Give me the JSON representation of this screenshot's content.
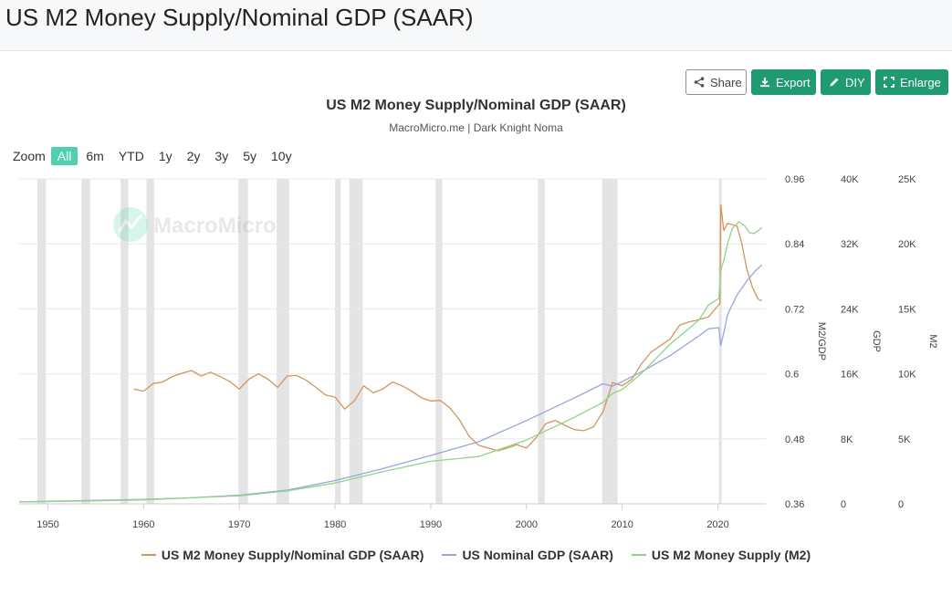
{
  "page": {
    "title": "US M2 Money Supply/Nominal GDP (SAAR)"
  },
  "toolbar": {
    "share_label": "Share",
    "export_label": "Export",
    "diy_label": "DIY",
    "enlarge_label": "Enlarge"
  },
  "chart_header": {
    "title": "US M2 Money Supply/Nominal GDP (SAAR)",
    "subtitle": "MacroMicro.me | Dark Knight Noma",
    "watermark": "MacroMicro"
  },
  "zoom": {
    "label": "Zoom",
    "options": [
      "All",
      "6m",
      "YTD",
      "1y",
      "2y",
      "3y",
      "5y",
      "10y"
    ],
    "active": "All"
  },
  "colors": {
    "ratio": "#d4955a",
    "gdp": "#97a6dc",
    "m2": "#8fd48a",
    "recession": "#e4e4e4",
    "grid": "#e8e8e8"
  },
  "chart_data": {
    "type": "line",
    "title": "US M2 Money Supply/Nominal GDP (SAAR)",
    "subtitle": "MacroMicro.me | Dark Knight Noma",
    "xlabel": "",
    "x_ticks": [
      "1950",
      "1960",
      "1970",
      "1980",
      "1990",
      "2000",
      "2010",
      "2020"
    ],
    "x_range": [
      1947,
      2025
    ],
    "axes": [
      {
        "id": "ratio",
        "title": "M2/GDP",
        "range": [
          0.36,
          0.96
        ],
        "ticks": [
          "0.36",
          "0.48",
          "0.6",
          "0.72",
          "0.84",
          "0.96"
        ]
      },
      {
        "id": "gdp",
        "title": "GDP",
        "range": [
          0,
          40000
        ],
        "ticks": [
          "0",
          "8K",
          "16K",
          "24K",
          "32K",
          "40K"
        ]
      },
      {
        "id": "m2",
        "title": "M2",
        "range": [
          0,
          25000
        ],
        "ticks": [
          "0",
          "5K",
          "10K",
          "15K",
          "20K",
          "25K"
        ]
      }
    ],
    "recessions": [
      [
        1948.9,
        1949.8
      ],
      [
        1953.5,
        1954.4
      ],
      [
        1957.6,
        1958.4
      ],
      [
        1960.3,
        1961.1
      ],
      [
        1969.9,
        1970.9
      ],
      [
        1973.9,
        1975.2
      ],
      [
        1980.0,
        1980.6
      ],
      [
        1981.5,
        1982.9
      ],
      [
        1990.5,
        1991.2
      ],
      [
        2001.2,
        2001.9
      ],
      [
        2007.9,
        2009.5
      ],
      [
        2020.1,
        2020.4
      ]
    ],
    "series": [
      {
        "name": "US M2 Money Supply/Nominal GDP (SAAR)",
        "axis": "ratio",
        "color": "#d4955a",
        "points": [
          [
            1959,
            0.572
          ],
          [
            1960,
            0.568
          ],
          [
            1961,
            0.582
          ],
          [
            1962,
            0.585
          ],
          [
            1963,
            0.595
          ],
          [
            1964,
            0.601
          ],
          [
            1965,
            0.606
          ],
          [
            1966,
            0.596
          ],
          [
            1967,
            0.603
          ],
          [
            1968,
            0.595
          ],
          [
            1969,
            0.586
          ],
          [
            1970,
            0.572
          ],
          [
            1971,
            0.59
          ],
          [
            1972,
            0.6
          ],
          [
            1973,
            0.59
          ],
          [
            1974,
            0.575
          ],
          [
            1975,
            0.596
          ],
          [
            1976,
            0.597
          ],
          [
            1977,
            0.588
          ],
          [
            1978,
            0.575
          ],
          [
            1979,
            0.561
          ],
          [
            1980,
            0.557
          ],
          [
            1981,
            0.535
          ],
          [
            1982,
            0.55
          ],
          [
            1983,
            0.578
          ],
          [
            1984,
            0.565
          ],
          [
            1985,
            0.572
          ],
          [
            1986,
            0.585
          ],
          [
            1987,
            0.578
          ],
          [
            1988,
            0.568
          ],
          [
            1989,
            0.556
          ],
          [
            1990,
            0.55
          ],
          [
            1991,
            0.551
          ],
          [
            1992,
            0.537
          ],
          [
            1993,
            0.515
          ],
          [
            1994,
            0.485
          ],
          [
            1995,
            0.468
          ],
          [
            1996,
            0.463
          ],
          [
            1997,
            0.458
          ],
          [
            1998,
            0.463
          ],
          [
            1999,
            0.469
          ],
          [
            2000,
            0.463
          ],
          [
            2001,
            0.482
          ],
          [
            2002,
            0.508
          ],
          [
            2003,
            0.514
          ],
          [
            2004,
            0.505
          ],
          [
            2005,
            0.497
          ],
          [
            2006,
            0.495
          ],
          [
            2007,
            0.502
          ],
          [
            2008,
            0.53
          ],
          [
            2009,
            0.584
          ],
          [
            2010,
            0.578
          ],
          [
            2011,
            0.59
          ],
          [
            2012,
            0.618
          ],
          [
            2013,
            0.64
          ],
          [
            2014,
            0.652
          ],
          [
            2015,
            0.664
          ],
          [
            2016,
            0.69
          ],
          [
            2017,
            0.696
          ],
          [
            2018,
            0.7
          ],
          [
            2019,
            0.705
          ],
          [
            2020.2,
            0.73
          ],
          [
            2020.3,
            0.912
          ],
          [
            2020.6,
            0.865
          ],
          [
            2021,
            0.878
          ],
          [
            2022,
            0.873
          ],
          [
            2022.5,
            0.84
          ],
          [
            2023,
            0.795
          ],
          [
            2023.6,
            0.76
          ],
          [
            2024.2,
            0.738
          ],
          [
            2024.6,
            0.735
          ]
        ]
      },
      {
        "name": "US Nominal GDP (SAAR)",
        "axis": "gdp",
        "color": "#97a6dc",
        "points": [
          [
            1947,
            250
          ],
          [
            1950,
            300
          ],
          [
            1955,
            425
          ],
          [
            1960,
            540
          ],
          [
            1965,
            740
          ],
          [
            1970,
            1070
          ],
          [
            1975,
            1680
          ],
          [
            1980,
            2860
          ],
          [
            1985,
            4340
          ],
          [
            1990,
            5960
          ],
          [
            1995,
            7640
          ],
          [
            2000,
            10250
          ],
          [
            2005,
            13040
          ],
          [
            2008,
            14770
          ],
          [
            2009,
            14480
          ],
          [
            2010,
            15050
          ],
          [
            2012,
            16250
          ],
          [
            2015,
            18240
          ],
          [
            2018,
            20660
          ],
          [
            2019,
            21540
          ],
          [
            2020.1,
            21700
          ],
          [
            2020.3,
            19500
          ],
          [
            2020.7,
            21500
          ],
          [
            2021,
            23300
          ],
          [
            2022,
            25700
          ],
          [
            2023,
            27400
          ],
          [
            2024,
            28800
          ],
          [
            2024.6,
            29400
          ]
        ]
      },
      {
        "name": "US M2 Money Supply (M2)",
        "axis": "m2",
        "color": "#8fd48a",
        "points": [
          [
            1947,
            150
          ],
          [
            1950,
            175
          ],
          [
            1955,
            230
          ],
          [
            1960,
            300
          ],
          [
            1965,
            460
          ],
          [
            1970,
            620
          ],
          [
            1975,
            1000
          ],
          [
            1980,
            1600
          ],
          [
            1985,
            2470
          ],
          [
            1990,
            3270
          ],
          [
            1995,
            3640
          ],
          [
            2000,
            4910
          ],
          [
            2005,
            6660
          ],
          [
            2008,
            7800
          ],
          [
            2009,
            8500
          ],
          [
            2010,
            8790
          ],
          [
            2012,
            10030
          ],
          [
            2015,
            12280
          ],
          [
            2018,
            14130
          ],
          [
            2019,
            15300
          ],
          [
            2020.1,
            15800
          ],
          [
            2020.3,
            18000
          ],
          [
            2020.6,
            18700
          ],
          [
            2021,
            20000
          ],
          [
            2021.5,
            21200
          ],
          [
            2022.2,
            21700
          ],
          [
            2022.8,
            21400
          ],
          [
            2023.3,
            20850
          ],
          [
            2023.8,
            20800
          ],
          [
            2024.6,
            21250
          ]
        ]
      }
    ]
  }
}
